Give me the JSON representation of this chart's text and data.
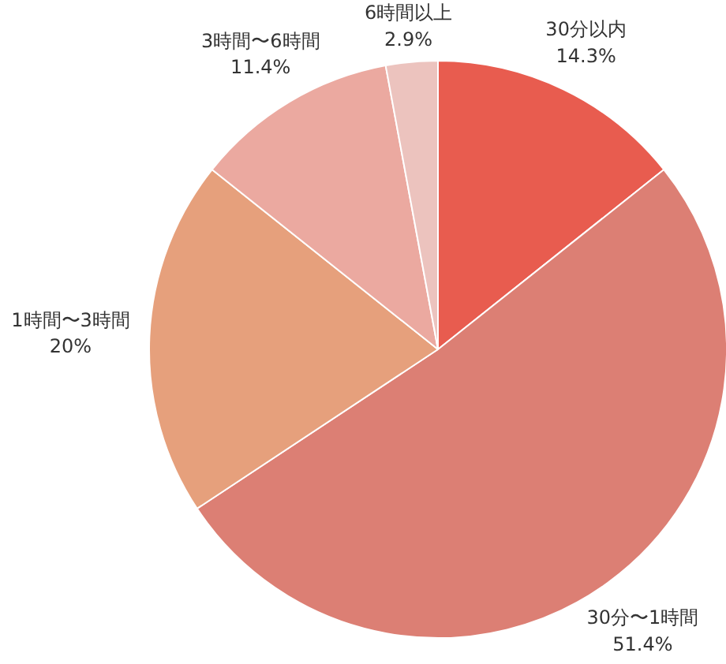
{
  "chart_data": {
    "type": "pie",
    "categories": [
      "30分以内",
      "30分〜1時間",
      "1時間〜3時間",
      "3時間〜6時間",
      "6時間以上"
    ],
    "values": [
      14.3,
      51.4,
      20,
      11.4,
      2.9
    ],
    "value_labels": [
      "14.3%",
      "51.4%",
      "20%",
      "11.4%",
      "2.9%"
    ],
    "colors": [
      "#e85c4f",
      "#dc7f74",
      "#e6a07c",
      "#eba9a0",
      "#ecc3be"
    ]
  }
}
